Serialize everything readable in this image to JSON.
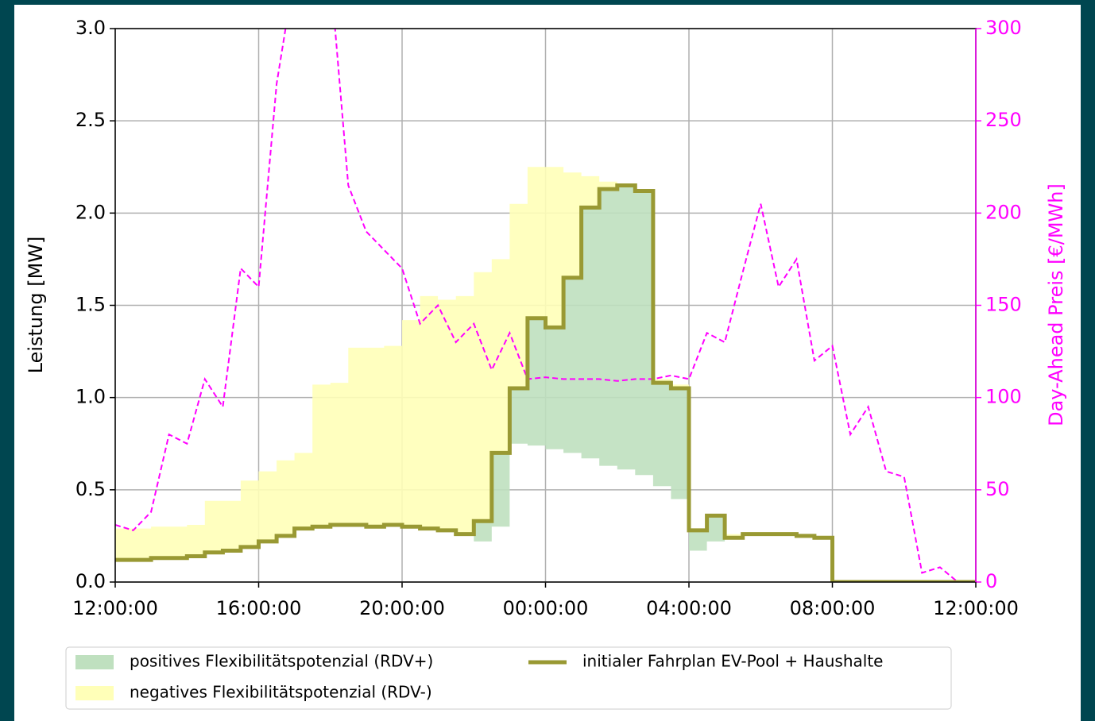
{
  "chart_data": {
    "type": "step-area",
    "ylabel": "Leistung [MW]",
    "y2label": "Day-Ahead Preis [€/MWh]",
    "x": [
      0,
      0.5,
      1,
      1.5,
      2,
      2.5,
      3,
      3.5,
      4,
      4.5,
      5,
      5.5,
      6,
      6.5,
      7,
      7.5,
      8,
      8.5,
      9,
      9.5,
      10,
      10.5,
      11,
      11.5,
      12,
      12.5,
      13,
      13.5,
      14,
      14.5,
      15,
      15.5,
      16,
      16.5,
      17,
      17.5,
      18,
      18.5,
      19,
      19.5,
      20,
      20.5,
      21,
      21.5,
      22,
      22.5,
      23,
      23.5,
      24
    ],
    "xlim": [
      0,
      24
    ],
    "xticks": [
      {
        "value": 0,
        "label": "12:00:00"
      },
      {
        "value": 4,
        "label": "16:00:00"
      },
      {
        "value": 8,
        "label": "20:00:00"
      },
      {
        "value": 12,
        "label": "00:00:00"
      },
      {
        "value": 16,
        "label": "04:00:00"
      },
      {
        "value": 20,
        "label": "08:00:00"
      },
      {
        "value": 24,
        "label": "12:00:00"
      }
    ],
    "ylim": [
      0,
      3
    ],
    "yticks": [
      {
        "value": 0,
        "label": "0.0"
      },
      0.5,
      {
        "value": 1,
        "label": "1.0"
      },
      1.5,
      {
        "value": 2,
        "label": "2.0"
      },
      2.5,
      {
        "value": 3,
        "label": "3.0"
      }
    ],
    "y2lim": [
      0,
      300
    ],
    "y2ticks": [
      0,
      50,
      100,
      150,
      200,
      250,
      300
    ],
    "grid": true,
    "legend": "bottom",
    "series": [
      {
        "name": "positives Flexibilitätspotenzial (RDV+)",
        "color": "#bfe0bf",
        "role": "lower",
        "values": [
          0.12,
          0.12,
          0.13,
          0.13,
          0.14,
          0.16,
          0.17,
          0.19,
          0.22,
          0.25,
          0.29,
          0.3,
          0.31,
          0.31,
          0.3,
          0.31,
          0.3,
          0.29,
          0.28,
          0.26,
          0.22,
          0.3,
          0.75,
          0.74,
          0.72,
          0.7,
          0.67,
          0.63,
          0.61,
          0.58,
          0.52,
          0.45,
          0.17,
          0.22,
          0.24,
          0.26,
          0.26,
          0.26,
          0.25,
          0.24,
          0,
          0,
          0,
          0,
          0,
          0,
          0,
          0,
          0
        ]
      },
      {
        "name": "negatives Flexibilitätspotenzial (RDV-)",
        "color": "#ffffb8",
        "role": "upper",
        "values": [
          0.29,
          0.29,
          0.3,
          0.3,
          0.31,
          0.44,
          0.44,
          0.55,
          0.6,
          0.66,
          0.7,
          1.07,
          1.08,
          1.27,
          1.27,
          1.28,
          1.42,
          1.55,
          1.53,
          1.55,
          1.68,
          1.75,
          2.05,
          2.25,
          2.25,
          2.22,
          2.2,
          2.17,
          2.15,
          2.13,
          1.1,
          1.07,
          0.28,
          0.36,
          0.26,
          0.27,
          0.27,
          0.27,
          0.26,
          0.25,
          0,
          0,
          0,
          0,
          0,
          0,
          0,
          0,
          0
        ]
      },
      {
        "name": "initialer Fahrplan EV-Pool + Haushalte",
        "color": "#999933",
        "role": "line",
        "values": [
          0.12,
          0.12,
          0.13,
          0.13,
          0.14,
          0.16,
          0.17,
          0.19,
          0.22,
          0.25,
          0.29,
          0.3,
          0.31,
          0.31,
          0.3,
          0.31,
          0.3,
          0.29,
          0.28,
          0.26,
          0.33,
          0.7,
          1.05,
          1.43,
          1.38,
          1.65,
          2.03,
          2.13,
          2.15,
          2.12,
          1.08,
          1.05,
          0.28,
          0.36,
          0.24,
          0.26,
          0.26,
          0.26,
          0.25,
          0.24,
          0,
          0,
          0,
          0,
          0,
          0,
          0,
          0,
          0
        ]
      },
      {
        "color": "#ff00ff",
        "role": "price",
        "axis": "y2",
        "values": [
          31,
          28,
          38,
          80,
          75,
          110,
          95,
          170,
          160,
          270,
          330,
          320,
          330,
          215,
          190,
          180,
          170,
          140,
          150,
          130,
          140,
          115,
          135,
          110,
          111,
          110,
          110,
          110,
          109,
          110,
          110,
          112,
          110,
          135,
          130,
          168,
          205,
          160,
          175,
          120,
          128,
          80,
          95,
          60,
          57,
          5,
          8,
          0,
          0
        ]
      }
    ]
  }
}
